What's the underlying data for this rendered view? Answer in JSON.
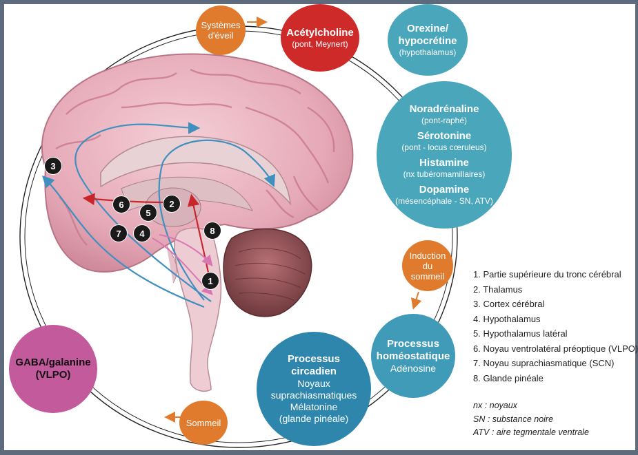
{
  "bubbles": {
    "systemes": {
      "line1": "Systèmes",
      "line2": "d'éveil"
    },
    "acetylcholine": {
      "title": "Acétylcholine",
      "sub": "(pont, Meynert)"
    },
    "orexine": {
      "title1": "Orexine/",
      "title2": "hypocrétine",
      "sub": "(hypothalamus)"
    },
    "mono": {
      "t1": "Noradrénaline",
      "s1": "(pont-raphé)",
      "t2": "Sérotonine",
      "s2": "(pont - locus cœruleus)",
      "t3": "Histamine",
      "s3": "(nx tubéromamillaires)",
      "t4": "Dopamine",
      "s4": "(mésencéphale - SN, ATV)"
    },
    "induction": {
      "line1": "Induction",
      "line2": "du",
      "line3": "sommeil"
    },
    "homeo": {
      "title1": "Processus",
      "title2": "homéostatique",
      "sub": "Adénosine"
    },
    "circadien": {
      "title1": "Processus",
      "title2": "circadien",
      "l1": "Noyaux",
      "l2": "suprachiasmatiques",
      "l3": "Mélatonine",
      "l4": "(glande pinéale)"
    },
    "sommeil": {
      "label": "Sommeil"
    },
    "gaba": {
      "line1": "GABA/galanine",
      "line2": "(VLPO)"
    }
  },
  "markers": [
    "1",
    "2",
    "3",
    "4",
    "5",
    "6",
    "7",
    "8"
  ],
  "legend": [
    "1. Partie supérieure du tronc cérébral",
    "2. Thalamus",
    "3. Cortex cérébral",
    "4. Hypothalamus",
    "5. Hypothalamus latéral",
    "6. Noyau ventrolatéral préoptique (VLPO)",
    "7. Noyau suprachiasmatique (SCN)",
    "8. Glande pinéale"
  ],
  "abbreviations": [
    "nx : noyaux",
    "SN : substance noire",
    "ATV : aire tegmentale ventrale"
  ],
  "colors": {
    "orange": "#e07a2c",
    "red": "#cf2a2a",
    "teal": "#3fa3b8",
    "blue": "#2c8ab0",
    "magenta": "#c35a9b",
    "brain": "#e8b3bf"
  }
}
